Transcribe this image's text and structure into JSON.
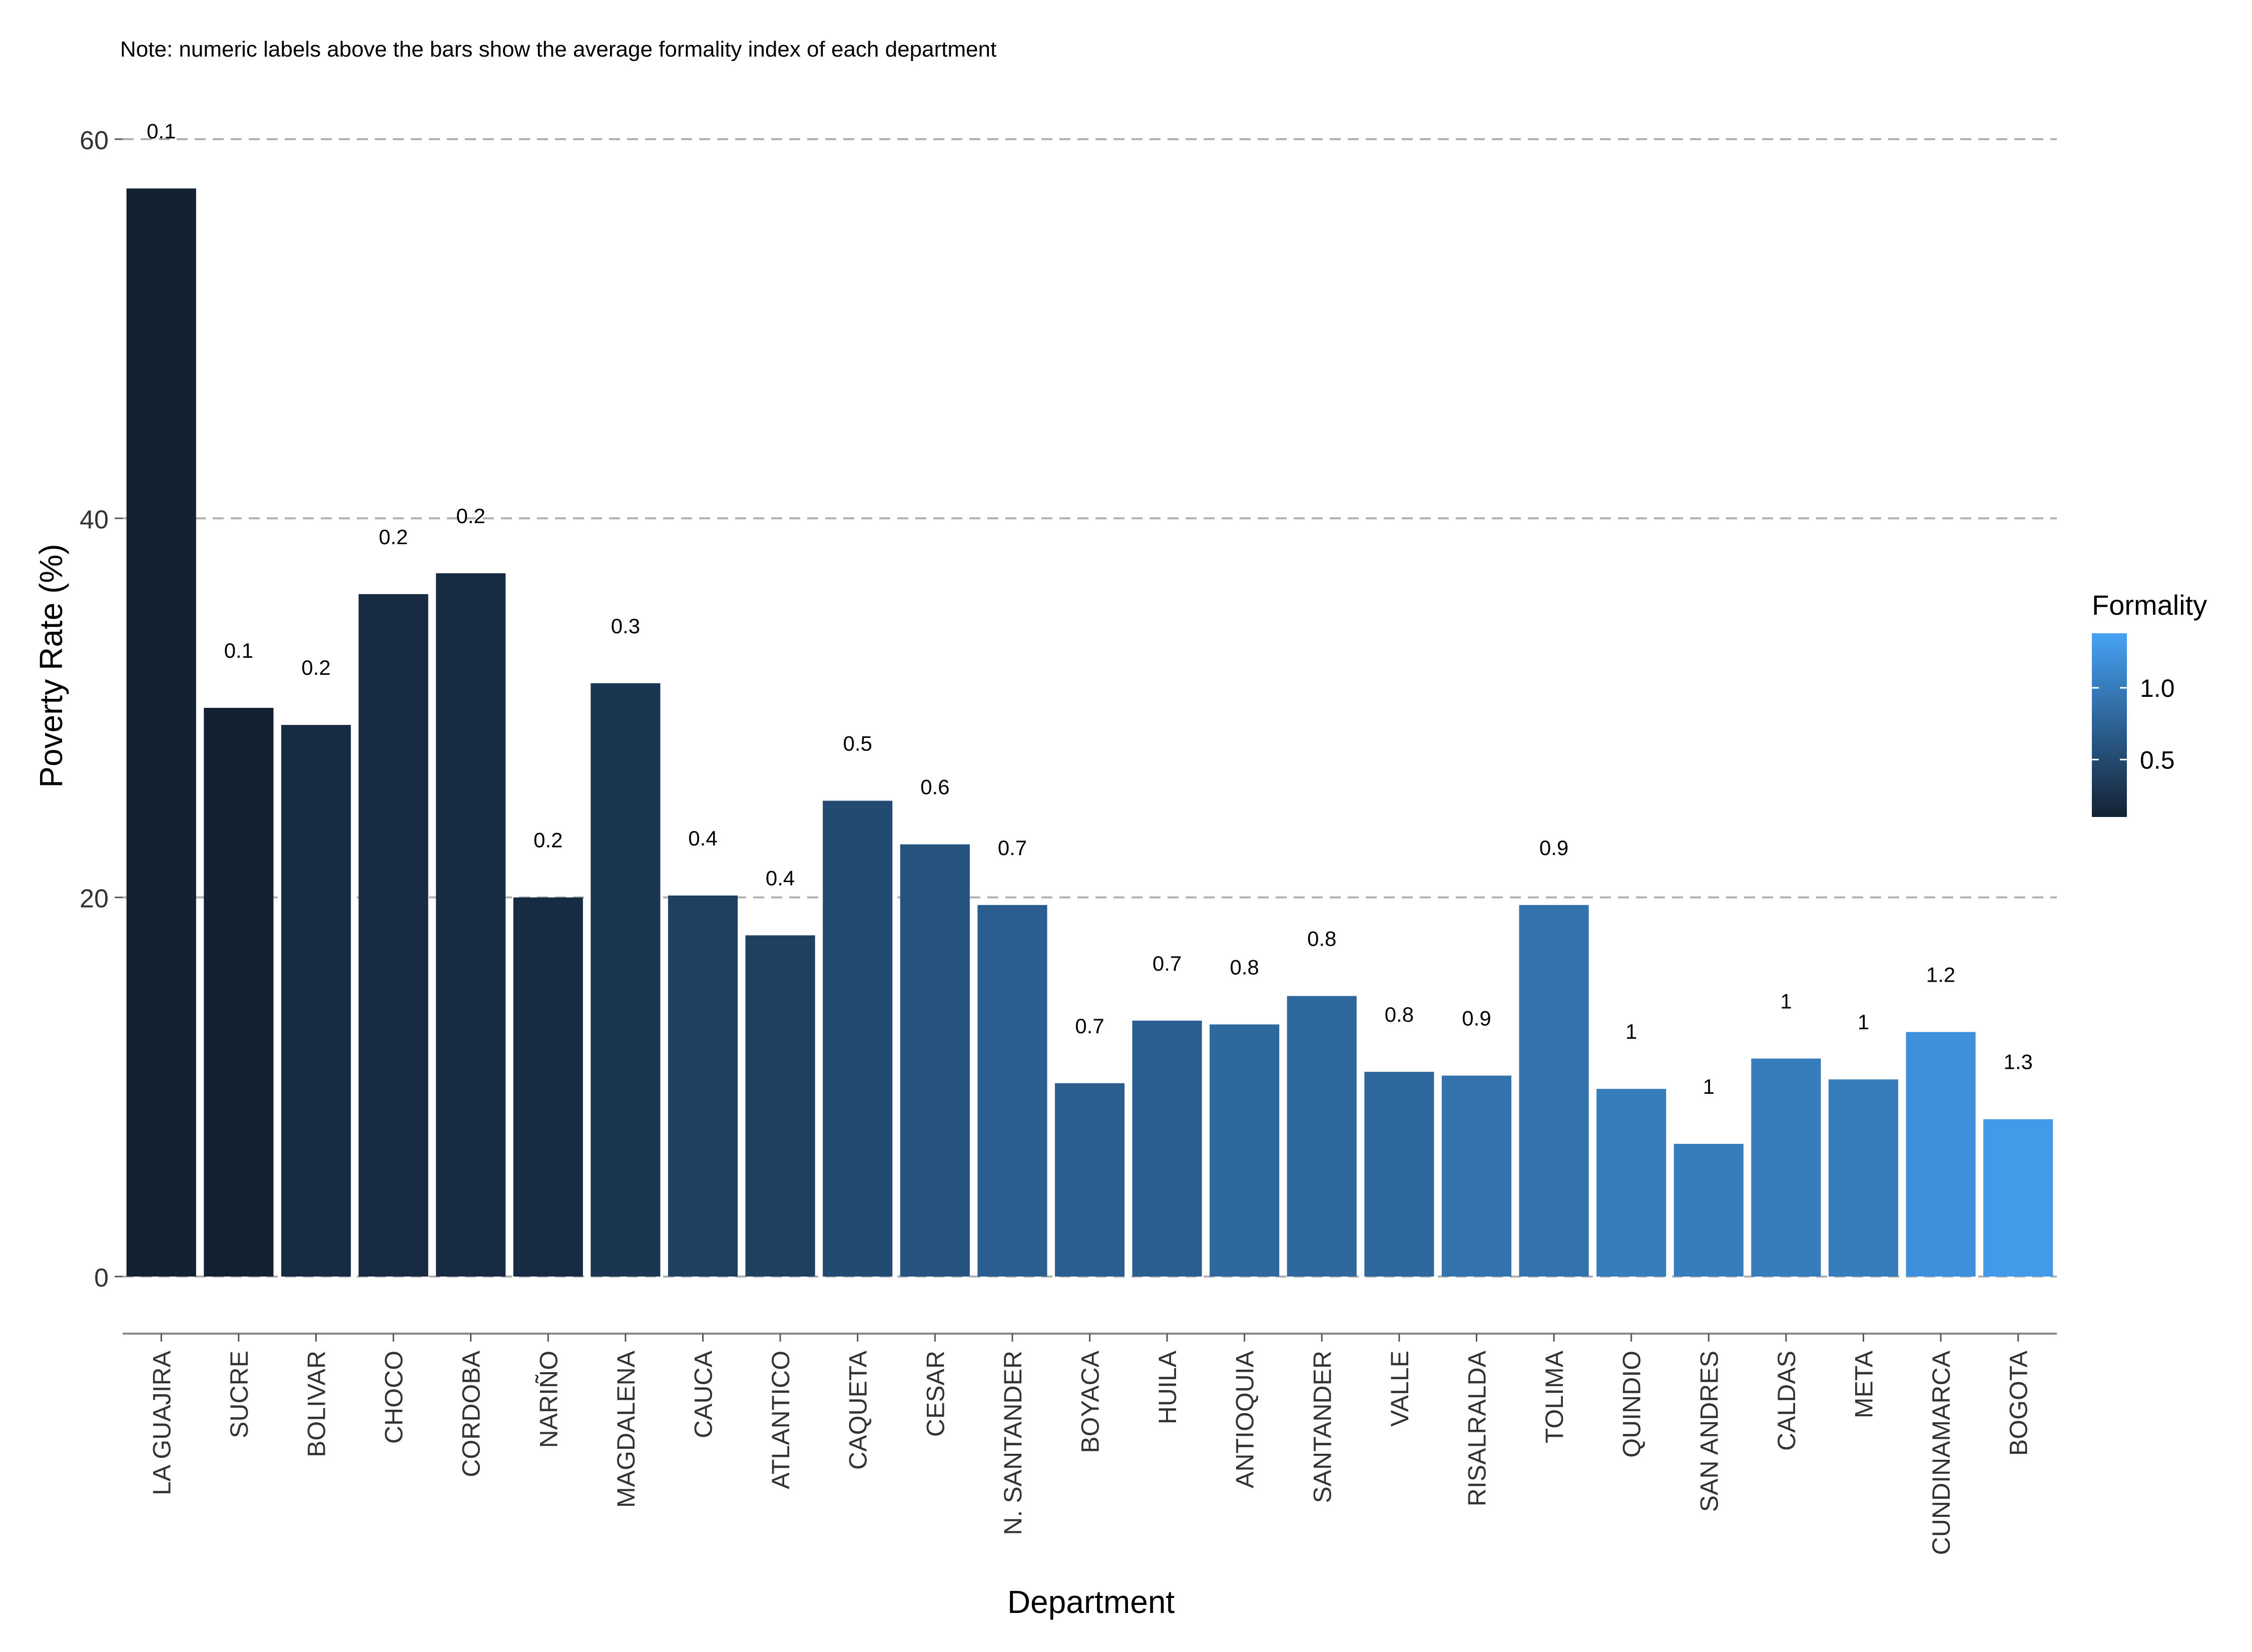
{
  "chart_data": {
    "type": "bar",
    "note": "Note: numeric labels above the bars show the average formality index of each department",
    "xlabel": "Department",
    "ylabel": "Poverty Rate (%)",
    "ylim": [
      0,
      60
    ],
    "yticks": [
      "0",
      "20",
      "40",
      "60"
    ],
    "grid": "dashed horizontal",
    "categories": [
      "LA GUAJIRA",
      "SUCRE",
      "BOLIVAR",
      "CHOCO",
      "CORDOBA",
      "NARIÑO",
      "MAGDALENA",
      "CAUCA",
      "ATLANTICO",
      "CAQUETA",
      "CESAR",
      "N. SANTANDER",
      "BOYACA",
      "HUILA",
      "ANTIOQUIA",
      "SANTANDER",
      "VALLE",
      "RISALRALDA",
      "TOLIMA",
      "QUINDIO",
      "SAN ANDRES",
      "CALDAS",
      "META",
      "CUNDINAMARCA",
      "BOGOTA"
    ],
    "values": [
      57.4,
      30.0,
      29.1,
      36.0,
      37.1,
      20.0,
      31.3,
      20.1,
      18.0,
      25.1,
      22.8,
      19.6,
      10.2,
      13.5,
      13.3,
      14.8,
      10.8,
      10.6,
      19.6,
      9.9,
      7.0,
      11.5,
      10.4,
      12.9,
      8.3
    ],
    "formality": [
      0.1,
      0.1,
      0.2,
      0.2,
      0.2,
      0.2,
      0.3,
      0.4,
      0.4,
      0.5,
      0.6,
      0.7,
      0.7,
      0.7,
      0.8,
      0.8,
      0.8,
      0.9,
      0.9,
      1.0,
      1.0,
      1.0,
      1.0,
      1.2,
      1.3
    ],
    "bar_labels": [
      "0.1",
      "0.1",
      "0.2",
      "0.2",
      "0.2",
      "0.2",
      "0.3",
      "0.4",
      "0.4",
      "0.5",
      "0.6",
      "0.7",
      "0.7",
      "0.7",
      "0.8",
      "0.8",
      "0.8",
      "0.9",
      "0.9",
      "1",
      "1",
      "1",
      "1",
      "1.2",
      "1.3"
    ],
    "legend": {
      "title": "Formality",
      "position": "right",
      "ticks": [
        {
          "value": 0.5,
          "label": "0.5"
        },
        {
          "value": 1.0,
          "label": "1.0"
        }
      ],
      "range": [
        0.1,
        1.38
      ],
      "color_low": "#132233",
      "color_high": "#46a2f5"
    }
  }
}
